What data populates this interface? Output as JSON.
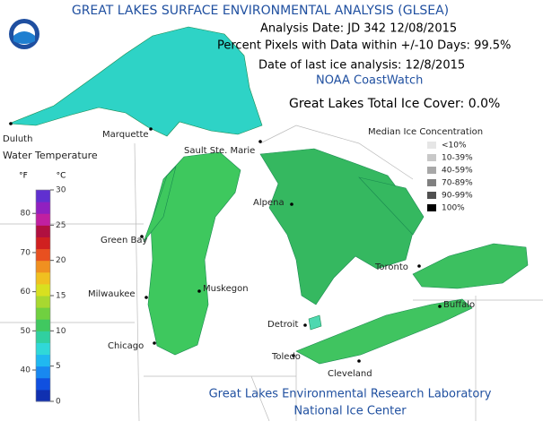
{
  "header": {
    "title": "GREAT LAKES SURFACE ENVIRONMENTAL ANALYSIS (GLSEA)",
    "analysis_date": "Analysis Date:  JD 342 12/08/2015",
    "percent_pixels": "Percent Pixels with Data within +/-10 Days:  99.5%",
    "last_ice": "Date of last ice analysis: 12/8/2015",
    "source": "NOAA CoastWatch"
  },
  "ice_cover": "Great Lakes Total Ice Cover:  0.0%",
  "ice_legend": {
    "title": "Median Ice Concentration",
    "entries": [
      "<10%",
      "10-39%",
      "40-59%",
      "70-89%",
      "90-99%",
      "100%"
    ]
  },
  "temperature_scale": {
    "title": "Water Temperature",
    "fahrenheit_unit": "°F",
    "celsius_unit": "°C",
    "fahrenheit_ticks": [
      80,
      70,
      60,
      50,
      40
    ],
    "celsius_ticks": [
      30,
      25,
      20,
      15,
      10,
      5,
      0
    ]
  },
  "cities": [
    "Duluth",
    "Marquette",
    "Sault Ste. Marie",
    "Alpena",
    "Green Bay",
    "Milwaukee",
    "Muskegon",
    "Chicago",
    "Detroit",
    "Toledo",
    "Cleveland",
    "Toronto",
    "Buffalo"
  ],
  "footer": {
    "line1": "Great Lakes Environmental Research Laboratory",
    "line2": "National Ice Center"
  }
}
